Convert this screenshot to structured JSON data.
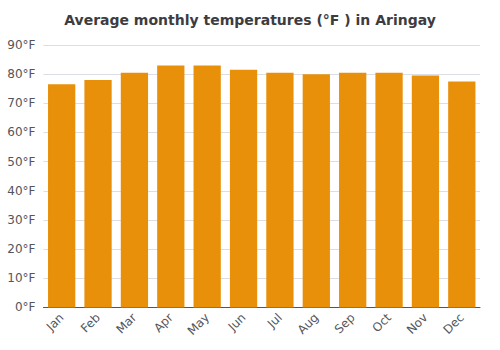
{
  "chart_data": {
    "type": "bar",
    "title": "Average monthly temperatures (°F ) in Aringay",
    "categories": [
      "Jan",
      "Feb",
      "Mar",
      "Apr",
      "May",
      "Jun",
      "Jul",
      "Aug",
      "Sep",
      "Oct",
      "Nov",
      "Dec"
    ],
    "values": [
      76.5,
      78.0,
      80.5,
      83.0,
      83.0,
      81.5,
      80.5,
      80.0,
      80.5,
      80.5,
      79.5,
      77.5
    ],
    "color": "#E8900A",
    "ylim": [
      0,
      90
    ],
    "yticks": [
      {
        "value": 0,
        "label": "0°F"
      },
      {
        "value": 10,
        "label": "10°F"
      },
      {
        "value": 20,
        "label": "20°F"
      },
      {
        "value": 30,
        "label": "30°F"
      },
      {
        "value": 40,
        "label": "40°F"
      },
      {
        "value": 50,
        "label": "50°F"
      },
      {
        "value": 60,
        "label": "60°F"
      },
      {
        "value": 70,
        "label": "70°F"
      },
      {
        "value": 80,
        "label": "80°F"
      },
      {
        "value": 90,
        "label": "90°F"
      }
    ],
    "grid": true
  }
}
